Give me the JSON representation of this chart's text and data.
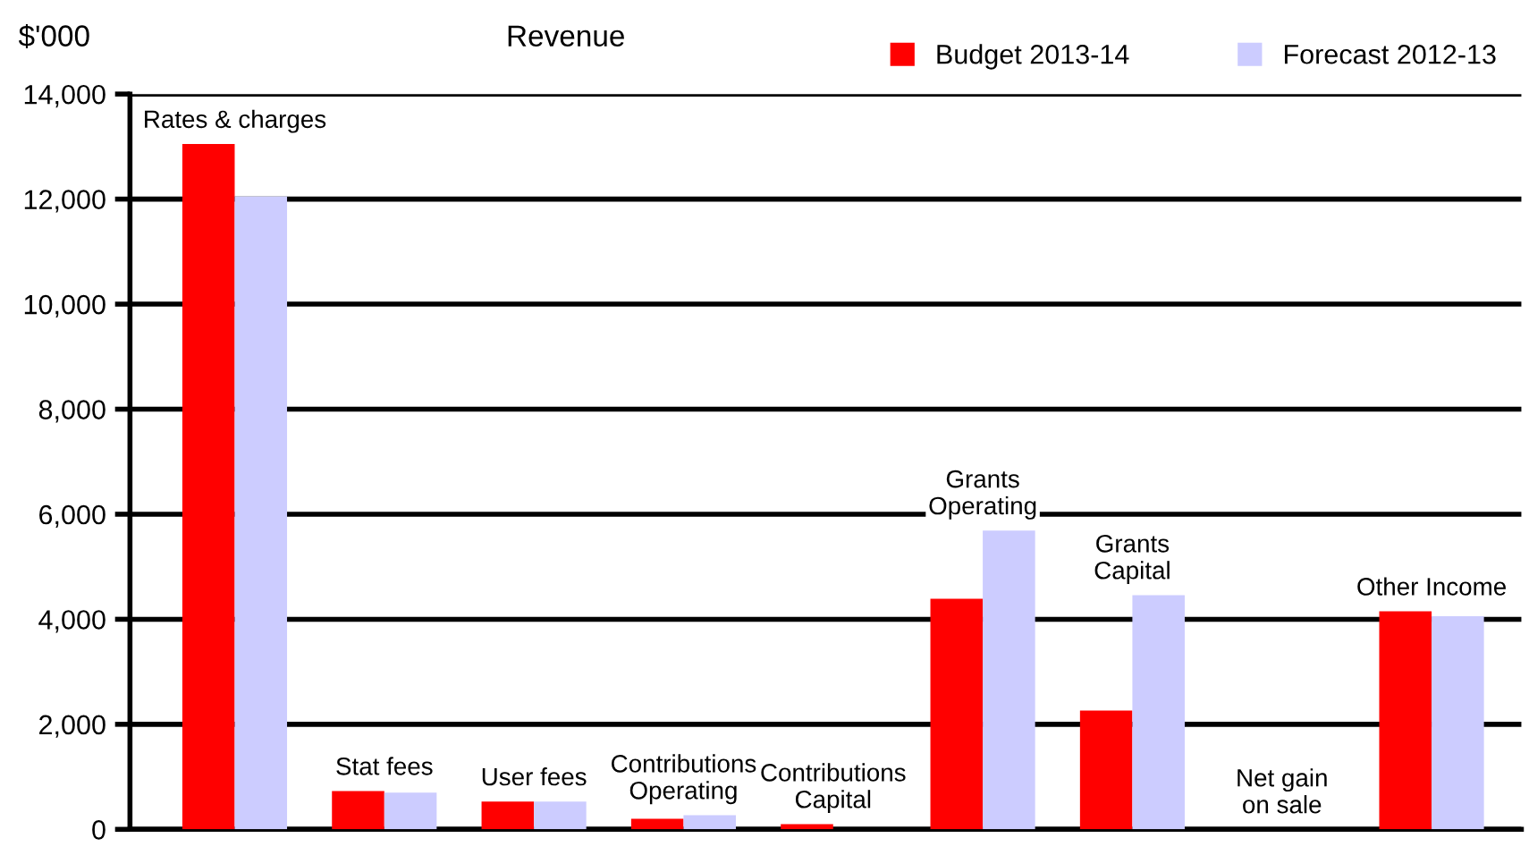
{
  "chart_data": {
    "type": "bar",
    "title": "Revenue",
    "ylabel": "$'000",
    "categories": [
      "Rates & charges",
      "Stat fees",
      "User fees",
      "Contributions\nOperating",
      "Contributions\nCapital",
      "Grants\nOperating",
      "Grants\nCapital",
      "Net gain\non sale",
      "Other Income"
    ],
    "series": [
      {
        "name": "Budget 2013-14",
        "color": "#ff0000",
        "values": [
          13050,
          730,
          530,
          200,
          100,
          4390,
          2260,
          0,
          4150
        ]
      },
      {
        "name": "Forecast 2012-13",
        "color": "#ccccff",
        "values": [
          12050,
          700,
          530,
          270,
          0,
          5690,
          4460,
          0,
          4060
        ]
      }
    ],
    "ylim": [
      0,
      14000
    ],
    "yticks": [
      {
        "value": 0,
        "label": "0"
      },
      {
        "value": 2000,
        "label": "2,000"
      },
      {
        "value": 4000,
        "label": "4,000"
      },
      {
        "value": 6000,
        "label": "6,000"
      },
      {
        "value": 8000,
        "label": "8,000"
      },
      {
        "value": 10000,
        "label": "10,000"
      },
      {
        "value": 12000,
        "label": "12,000"
      },
      {
        "value": 14000,
        "label": "14,000"
      }
    ],
    "grid": "y",
    "legend": "top right"
  }
}
